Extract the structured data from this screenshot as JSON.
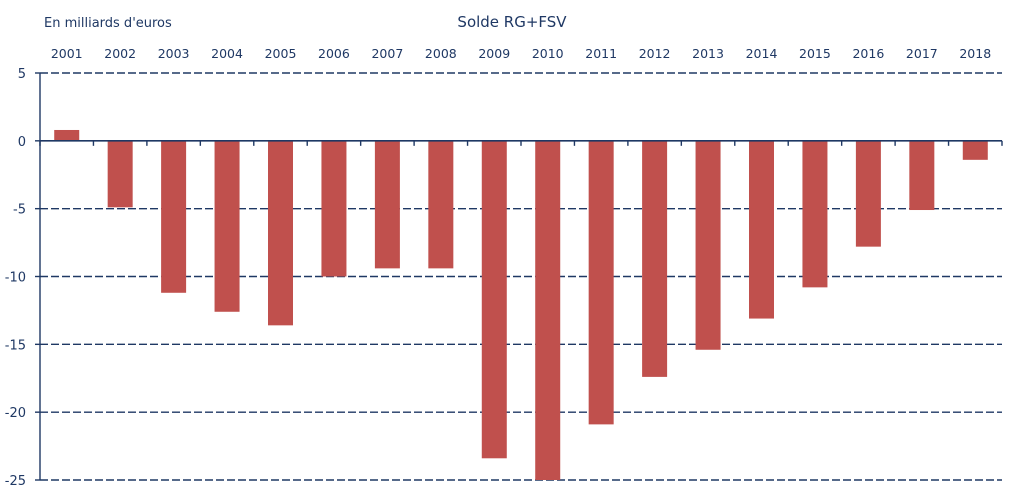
{
  "chart_data": {
    "type": "bar",
    "title": "Solde RG+FSV",
    "unit_label": "En milliards d'euros",
    "xlabel": "",
    "ylabel": "",
    "categories": [
      "2001",
      "2002",
      "2003",
      "2004",
      "2005",
      "2006",
      "2007",
      "2008",
      "2009",
      "2010",
      "2011",
      "2012",
      "2013",
      "2014",
      "2015",
      "2016",
      "2017",
      "2018"
    ],
    "values": [
      0.8,
      -4.9,
      -11.2,
      -12.6,
      -13.6,
      -10.0,
      -9.4,
      -9.4,
      -23.4,
      -25.0,
      -20.9,
      -17.4,
      -15.4,
      -13.1,
      -10.8,
      -7.8,
      -5.1,
      -1.4
    ],
    "ylim": [
      -25,
      5
    ],
    "yticks": [
      5,
      0,
      -5,
      -10,
      -15,
      -20,
      -25
    ],
    "ytick_labels": [
      "5",
      "0",
      "-5",
      "-10",
      "-15",
      "-20",
      "-25"
    ],
    "x_axis_position": "top",
    "grid": true,
    "legend": "none",
    "colors": {
      "bar": "#c0504d",
      "text": "#1f3864",
      "grid": "#1f3864"
    }
  }
}
